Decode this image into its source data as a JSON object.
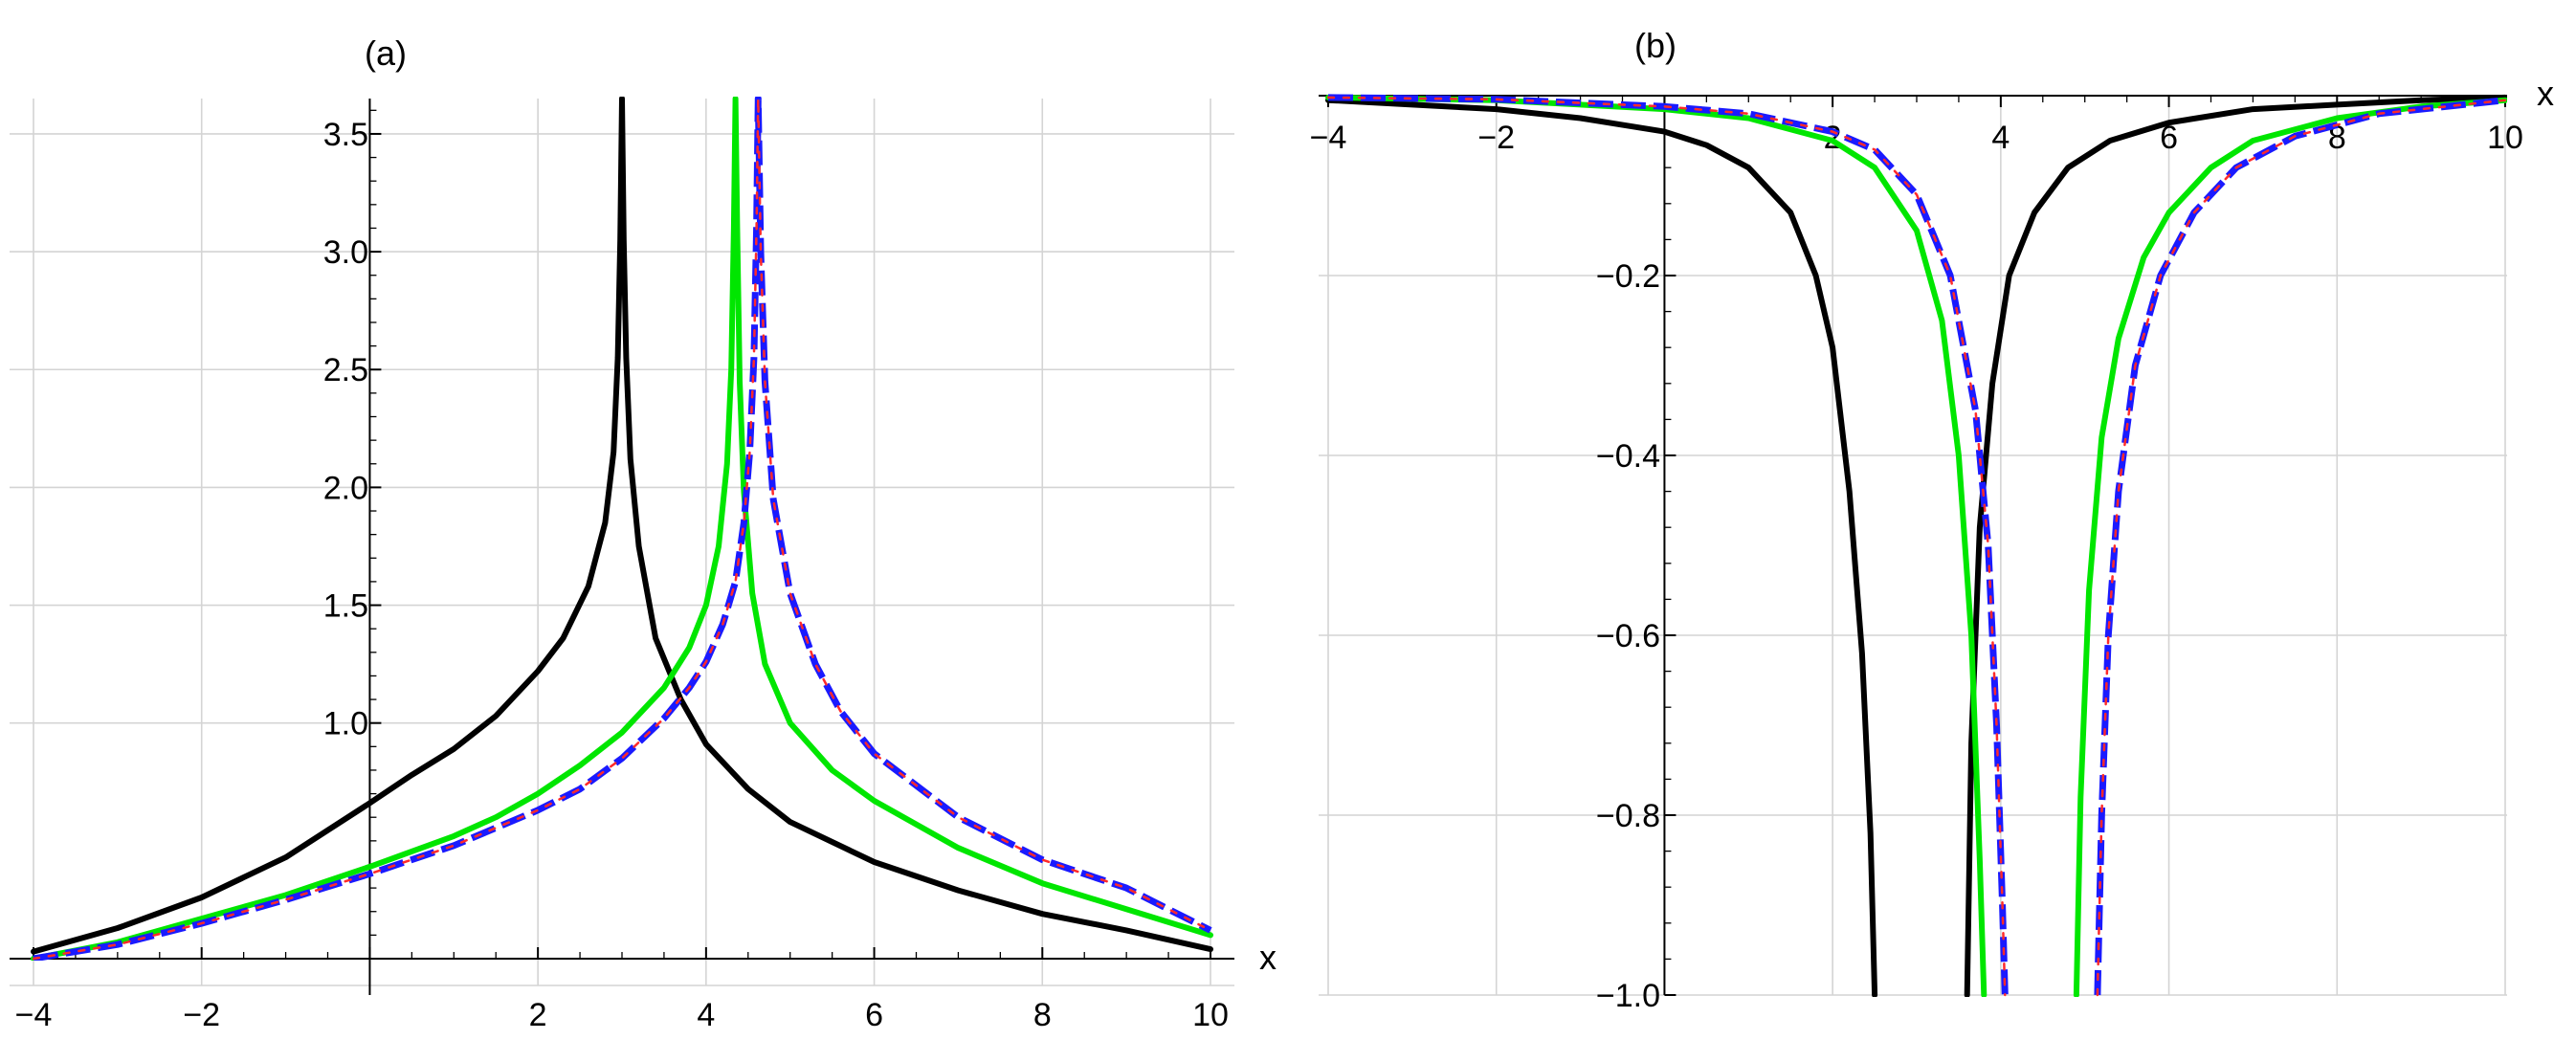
{
  "chart_data": [
    {
      "panel_label": "(a)",
      "type": "line",
      "xlabel": "x",
      "ylabel": "",
      "xlim": [
        -4,
        10
      ],
      "ylim": [
        0,
        3.65
      ],
      "grid": true,
      "x_ticks": [
        {
          "value": -4,
          "label": "−4"
        },
        {
          "value": -2,
          "label": "−2"
        },
        {
          "value": 2,
          "label": "2"
        },
        {
          "value": 4,
          "label": "4"
        },
        {
          "value": 6,
          "label": "6"
        },
        {
          "value": 8,
          "label": "8"
        },
        {
          "value": 10,
          "label": "10"
        }
      ],
      "y_ticks": [
        {
          "value": 1.0,
          "label": "1.0"
        },
        {
          "value": 1.5,
          "label": "1.5"
        },
        {
          "value": 2.0,
          "label": "2.0"
        },
        {
          "value": 2.5,
          "label": "2.5"
        },
        {
          "value": 3.0,
          "label": "3.0"
        },
        {
          "value": 3.5,
          "label": "3.5"
        }
      ],
      "series": [
        {
          "color": "#000000",
          "style": "solid",
          "x": [
            -4,
            -3,
            -2,
            -1,
            0,
            0.5,
            1,
            1.5,
            2,
            2.3,
            2.6,
            2.8,
            2.9,
            2.95,
            2.98,
            3.0,
            3.02,
            3.05,
            3.1,
            3.2,
            3.4,
            3.7,
            4,
            4.5,
            5,
            6,
            7,
            8,
            9,
            10
          ],
          "y": [
            0.03,
            0.13,
            0.26,
            0.43,
            0.66,
            0.78,
            0.89,
            1.03,
            1.22,
            1.36,
            1.58,
            1.85,
            2.15,
            2.55,
            3.05,
            3.65,
            3.05,
            2.55,
            2.12,
            1.75,
            1.36,
            1.1,
            0.91,
            0.72,
            0.58,
            0.41,
            0.29,
            0.19,
            0.12,
            0.04
          ]
        },
        {
          "color": "#00e600",
          "style": "solid",
          "x": [
            -4,
            -3,
            -2,
            -1,
            0,
            1,
            1.5,
            2,
            2.5,
            3,
            3.5,
            3.8,
            4.0,
            4.15,
            4.25,
            4.3,
            4.33,
            4.35,
            4.37,
            4.4,
            4.45,
            4.55,
            4.7,
            5,
            5.5,
            6,
            7,
            8,
            9,
            10
          ],
          "y": [
            0.0,
            0.07,
            0.17,
            0.27,
            0.39,
            0.52,
            0.6,
            0.7,
            0.82,
            0.96,
            1.15,
            1.32,
            1.5,
            1.75,
            2.1,
            2.5,
            3.1,
            3.65,
            3.1,
            2.45,
            1.98,
            1.55,
            1.25,
            1.0,
            0.8,
            0.67,
            0.47,
            0.32,
            0.21,
            0.1
          ]
        },
        {
          "color": "#1a1aff",
          "style": "dashed",
          "x": [
            -4,
            -3,
            -2,
            -1,
            0,
            1,
            2,
            2.5,
            3,
            3.5,
            3.8,
            4.0,
            4.2,
            4.35,
            4.45,
            4.52,
            4.57,
            4.6,
            4.62,
            4.65,
            4.7,
            4.8,
            5,
            5.3,
            5.6,
            6,
            7,
            8,
            9,
            10
          ],
          "y": [
            0.0,
            0.06,
            0.15,
            0.25,
            0.36,
            0.48,
            0.63,
            0.72,
            0.85,
            1.02,
            1.15,
            1.26,
            1.42,
            1.6,
            1.85,
            2.15,
            2.55,
            3.1,
            3.65,
            3.0,
            2.45,
            1.95,
            1.55,
            1.25,
            1.05,
            0.87,
            0.6,
            0.42,
            0.3,
            0.12
          ]
        },
        {
          "color": "#ff2a2a",
          "style": "dotted",
          "x": [
            -4,
            -3,
            -2,
            -1,
            0,
            1,
            2,
            2.5,
            3,
            3.5,
            3.8,
            4.0,
            4.2,
            4.35,
            4.45,
            4.52,
            4.57,
            4.6,
            4.62,
            4.65,
            4.7,
            4.8,
            5,
            5.3,
            5.6,
            6,
            7,
            8,
            9,
            10
          ],
          "y": [
            0.0,
            0.06,
            0.15,
            0.25,
            0.36,
            0.48,
            0.63,
            0.72,
            0.85,
            1.02,
            1.15,
            1.26,
            1.42,
            1.6,
            1.85,
            2.15,
            2.55,
            3.1,
            3.65,
            3.0,
            2.45,
            1.95,
            1.55,
            1.25,
            1.05,
            0.87,
            0.6,
            0.42,
            0.3,
            0.12
          ]
        }
      ]
    },
    {
      "panel_label": "(b)",
      "type": "line",
      "xlabel": "x",
      "ylabel": "",
      "xlim": [
        -4,
        10
      ],
      "ylim": [
        -1.0,
        0
      ],
      "grid": true,
      "x_ticks": [
        {
          "value": -4,
          "label": "−4"
        },
        {
          "value": -2,
          "label": "−2"
        },
        {
          "value": 2,
          "label": "2"
        },
        {
          "value": 4,
          "label": "4"
        },
        {
          "value": 6,
          "label": "6"
        },
        {
          "value": 8,
          "label": "8"
        },
        {
          "value": 10,
          "label": "10"
        }
      ],
      "y_ticks": [
        {
          "value": -0.2,
          "label": "−0.2"
        },
        {
          "value": -0.4,
          "label": "−0.4"
        },
        {
          "value": -0.6,
          "label": "−0.6"
        },
        {
          "value": -0.8,
          "label": "−0.8"
        },
        {
          "value": -1.0,
          "label": "−1.0"
        }
      ],
      "series": [
        {
          "color": "#000000",
          "style": "solid",
          "x": [
            -4,
            -3,
            -2,
            -1,
            0,
            0.5,
            1,
            1.5,
            1.8,
            2.0,
            2.2,
            2.35,
            2.45,
            2.5,
            null,
            3.6,
            3.65,
            3.75,
            3.9,
            4.1,
            4.4,
            4.8,
            5.3,
            6,
            7,
            8,
            9,
            10
          ],
          "y": [
            -0.005,
            -0.01,
            -0.015,
            -0.025,
            -0.04,
            -0.055,
            -0.08,
            -0.13,
            -0.2,
            -0.28,
            -0.44,
            -0.62,
            -0.82,
            -1.0,
            null,
            -1.0,
            -0.72,
            -0.48,
            -0.32,
            -0.2,
            -0.13,
            -0.08,
            -0.05,
            -0.03,
            -0.015,
            -0.01,
            -0.005,
            -0.002
          ]
        },
        {
          "color": "#00e600",
          "style": "solid",
          "x": [
            -4,
            -2,
            0,
            1,
            2,
            2.5,
            3,
            3.3,
            3.5,
            3.65,
            3.75,
            3.8,
            null,
            4.9,
            4.95,
            5.05,
            5.2,
            5.4,
            5.7,
            6,
            6.5,
            7,
            8,
            9,
            10
          ],
          "y": [
            -0.002,
            -0.005,
            -0.015,
            -0.025,
            -0.05,
            -0.08,
            -0.15,
            -0.25,
            -0.4,
            -0.6,
            -0.85,
            -1.0,
            null,
            -1.0,
            -0.78,
            -0.55,
            -0.38,
            -0.27,
            -0.18,
            -0.13,
            -0.08,
            -0.05,
            -0.025,
            -0.012,
            -0.005
          ]
        },
        {
          "color": "#1a1aff",
          "style": "dashed",
          "x": [
            -4,
            -2,
            0,
            1,
            2,
            2.5,
            3,
            3.4,
            3.7,
            3.85,
            3.95,
            4.02,
            4.05,
            null,
            5.15,
            5.2,
            5.28,
            5.4,
            5.6,
            5.9,
            6.3,
            6.8,
            7.5,
            8.5,
            10
          ],
          "y": [
            -0.002,
            -0.004,
            -0.012,
            -0.02,
            -0.04,
            -0.06,
            -0.11,
            -0.2,
            -0.35,
            -0.5,
            -0.7,
            -0.9,
            -1.0,
            null,
            -1.0,
            -0.8,
            -0.6,
            -0.44,
            -0.3,
            -0.2,
            -0.13,
            -0.08,
            -0.045,
            -0.02,
            -0.005
          ]
        },
        {
          "color": "#ff2a2a",
          "style": "dotted",
          "x": [
            -4,
            -2,
            0,
            1,
            2,
            2.5,
            3,
            3.4,
            3.7,
            3.85,
            3.95,
            4.02,
            4.05,
            null,
            5.15,
            5.2,
            5.28,
            5.4,
            5.6,
            5.9,
            6.3,
            6.8,
            7.5,
            8.5,
            10
          ],
          "y": [
            -0.002,
            -0.004,
            -0.012,
            -0.02,
            -0.04,
            -0.06,
            -0.11,
            -0.2,
            -0.35,
            -0.5,
            -0.7,
            -0.9,
            -1.0,
            null,
            -1.0,
            -0.8,
            -0.6,
            -0.44,
            -0.3,
            -0.2,
            -0.13,
            -0.08,
            -0.045,
            -0.02,
            -0.005
          ]
        }
      ]
    }
  ]
}
